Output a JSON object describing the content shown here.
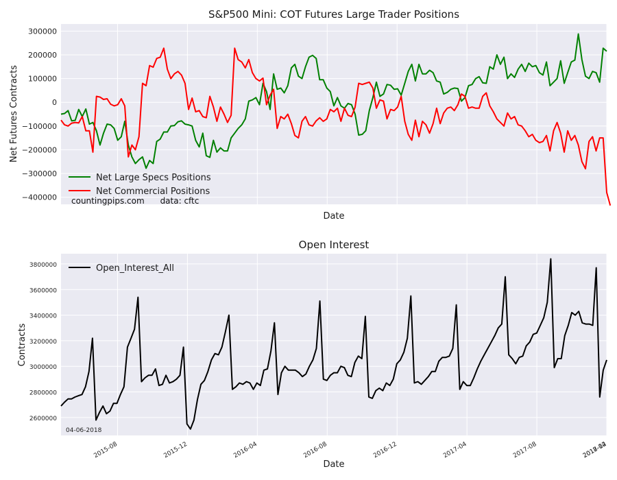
{
  "footer_date": "04-06-2018",
  "chart_data": [
    {
      "type": "line",
      "title": "S&P500 Mini: COT Futures Large Trader Positions",
      "xlabel": "Date",
      "ylabel": "Net Futures Contracts",
      "ylim": [
        -430000,
        330000
      ],
      "yticks": [
        300000,
        200000,
        100000,
        0,
        -100000,
        -200000,
        -300000,
        -400000
      ],
      "ytick_labels": [
        "300000",
        "200000",
        "100000",
        "0",
        "−100000",
        "−200000",
        "−300000",
        "−400000"
      ],
      "grid": true,
      "legend_position": "lower-left",
      "annotation": "countingpips.com      data: cftc",
      "series": [
        {
          "name": "Net Large Specs Positions",
          "color": "#008000",
          "values": [
            -50000,
            -47000,
            -35000,
            -78000,
            -76000,
            -30000,
            -60000,
            -28000,
            -92000,
            -85000,
            -120000,
            -180000,
            -130000,
            -92000,
            -95000,
            -110000,
            -160000,
            -145000,
            -80000,
            -180000,
            -230000,
            -258000,
            -242000,
            -230000,
            -278000,
            -245000,
            -258000,
            -165000,
            -155000,
            -125000,
            -125000,
            -100000,
            -98000,
            -82000,
            -78000,
            -92000,
            -95000,
            -100000,
            -160000,
            -188000,
            -130000,
            -225000,
            -232000,
            -160000,
            -210000,
            -192000,
            -205000,
            -205000,
            -150000,
            -130000,
            -110000,
            -95000,
            -70000,
            5000,
            10000,
            20000,
            -10000,
            80000,
            45000,
            -30000,
            120000,
            55000,
            60000,
            40000,
            70000,
            145000,
            160000,
            110000,
            100000,
            150000,
            190000,
            198000,
            185000,
            95000,
            95000,
            60000,
            45000,
            -15000,
            20000,
            -15000,
            -25000,
            -5000,
            -10000,
            -50000,
            -138000,
            -135000,
            -120000,
            -35000,
            20000,
            85000,
            25000,
            35000,
            75000,
            72000,
            55000,
            57000,
            30000,
            80000,
            130000,
            160000,
            90000,
            160000,
            120000,
            120000,
            135000,
            125000,
            90000,
            85000,
            35000,
            42000,
            55000,
            60000,
            58000,
            5000,
            20000,
            70000,
            75000,
            100000,
            108000,
            82000,
            80000,
            150000,
            140000,
            200000,
            160000,
            190000,
            100000,
            120000,
            105000,
            140000,
            160000,
            130000,
            165000,
            150000,
            155000,
            125000,
            115000,
            170000,
            70000,
            85000,
            100000,
            175000,
            80000,
            125000,
            170000,
            178000,
            288000,
            180000,
            110000,
            100000,
            130000,
            125000,
            85000,
            228000,
            215000
          ]
        },
        {
          "name": "Net Commercial Positions",
          "color": "#ff0000",
          "values": [
            -75000,
            -95000,
            -100000,
            -88000,
            -85000,
            -87000,
            -60000,
            -120000,
            -120000,
            -210000,
            25000,
            22000,
            12000,
            15000,
            -8000,
            -15000,
            -10000,
            15000,
            -15000,
            -230000,
            -180000,
            -200000,
            -145000,
            80000,
            70000,
            155000,
            148000,
            185000,
            190000,
            228000,
            140000,
            100000,
            120000,
            130000,
            115000,
            80000,
            -30000,
            18000,
            -40000,
            -35000,
            -60000,
            -65000,
            25000,
            -20000,
            -80000,
            -20000,
            -50000,
            -85000,
            -55000,
            228000,
            180000,
            170000,
            145000,
            180000,
            125000,
            100000,
            90000,
            102000,
            -10000,
            30000,
            55000,
            -110000,
            -60000,
            -70000,
            -50000,
            -90000,
            -140000,
            -150000,
            -80000,
            -60000,
            -95000,
            -100000,
            -78000,
            -65000,
            -80000,
            -70000,
            -30000,
            -40000,
            -25000,
            -80000,
            -25000,
            -55000,
            -60000,
            -20000,
            80000,
            75000,
            80000,
            85000,
            60000,
            -25000,
            10000,
            5000,
            -70000,
            -30000,
            -35000,
            -20000,
            25000,
            -80000,
            -135000,
            -160000,
            -75000,
            -145000,
            -80000,
            -95000,
            -130000,
            -90000,
            -25000,
            -90000,
            -45000,
            -25000,
            -20000,
            -35000,
            -10000,
            35000,
            25000,
            -25000,
            -20000,
            -25000,
            -25000,
            25000,
            40000,
            -15000,
            -40000,
            -70000,
            -85000,
            -100000,
            -45000,
            -70000,
            -60000,
            -95000,
            -100000,
            -120000,
            -145000,
            -135000,
            -160000,
            -170000,
            -165000,
            -140000,
            -205000,
            -120000,
            -85000,
            -130000,
            -210000,
            -120000,
            -160000,
            -140000,
            -180000,
            -250000,
            -280000,
            -165000,
            -145000,
            -205000,
            -150000,
            -150000,
            -380000,
            -435000
          ]
        }
      ]
    },
    {
      "type": "line",
      "title": "Open Interest",
      "xlabel": "Date",
      "ylabel": "Contracts",
      "ylim": [
        2460000,
        3880000
      ],
      "yticks": [
        2600000,
        2800000,
        3000000,
        3200000,
        3400000,
        3600000,
        3800000
      ],
      "ytick_labels": [
        "2600000",
        "2800000",
        "3000000",
        "3200000",
        "3400000",
        "3600000",
        "3800000"
      ],
      "xtick_labels": [
        "2015-08",
        "2015-12",
        "2016-04",
        "2016-08",
        "2016-12",
        "2017-04",
        "2017-08",
        "2017-12",
        "2018-04"
      ],
      "grid": true,
      "legend_position": "top-left",
      "series": [
        {
          "name": "Open_Interest_All",
          "color": "#000000",
          "values": [
            2690000,
            2720000,
            2745000,
            2745000,
            2760000,
            2770000,
            2780000,
            2840000,
            2960000,
            3220000,
            2580000,
            2640000,
            2690000,
            2630000,
            2650000,
            2710000,
            2710000,
            2780000,
            2840000,
            3150000,
            3220000,
            3290000,
            3540000,
            2880000,
            2910000,
            2930000,
            2930000,
            2980000,
            2850000,
            2860000,
            2930000,
            2870000,
            2880000,
            2900000,
            2930000,
            3150000,
            2550000,
            2510000,
            2580000,
            2740000,
            2860000,
            2890000,
            2960000,
            3050000,
            3100000,
            3090000,
            3150000,
            3270000,
            3400000,
            2820000,
            2840000,
            2870000,
            2860000,
            2880000,
            2870000,
            2820000,
            2870000,
            2850000,
            2970000,
            2980000,
            3120000,
            3340000,
            2780000,
            2950000,
            3000000,
            2970000,
            2970000,
            2970000,
            2950000,
            2920000,
            2940000,
            3000000,
            3050000,
            3140000,
            3510000,
            2900000,
            2890000,
            2930000,
            2950000,
            2950000,
            3000000,
            2990000,
            2930000,
            2920000,
            3030000,
            3080000,
            3060000,
            3390000,
            2760000,
            2750000,
            2810000,
            2830000,
            2810000,
            2870000,
            2850000,
            2900000,
            3020000,
            3050000,
            3110000,
            3220000,
            3550000,
            2870000,
            2880000,
            2860000,
            2890000,
            2920000,
            2960000,
            2960000,
            3040000,
            3070000,
            3070000,
            3080000,
            3140000,
            3480000,
            2820000,
            2880000,
            2850000,
            2850000,
            2910000,
            2980000,
            3040000,
            3090000,
            3140000,
            3190000,
            3240000,
            3300000,
            3330000,
            3700000,
            3090000,
            3060000,
            3020000,
            3070000,
            3080000,
            3160000,
            3190000,
            3250000,
            3260000,
            3320000,
            3380000,
            3500000,
            3840000,
            2990000,
            3060000,
            3060000,
            3240000,
            3320000,
            3420000,
            3400000,
            3430000,
            3340000,
            3330000,
            3330000,
            3320000,
            3770000,
            2760000,
            2970000,
            3050000
          ]
        }
      ]
    }
  ]
}
